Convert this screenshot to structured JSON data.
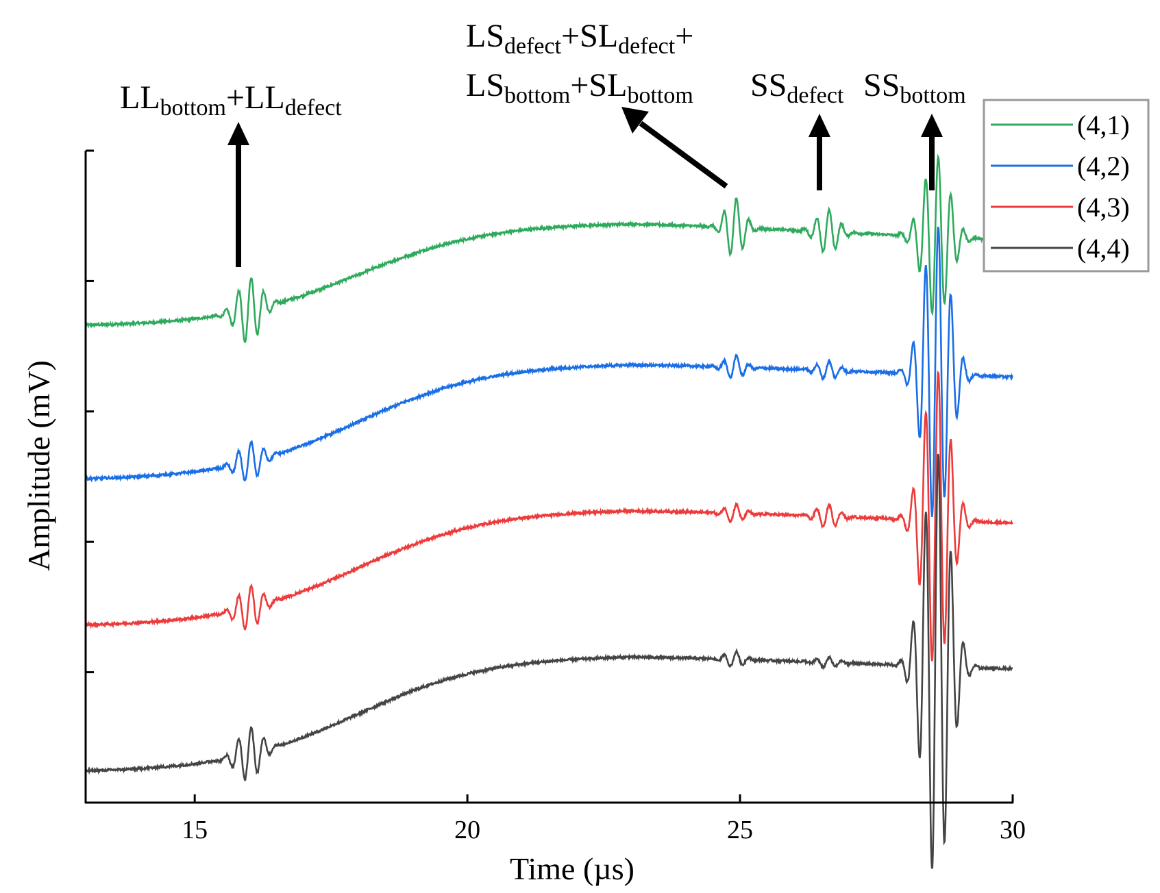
{
  "chart_data": {
    "type": "line",
    "xlabel": "Time (µs)",
    "ylabel": "Amplitude (mV)",
    "xlim": [
      13,
      30
    ],
    "ylim": [
      0,
      5
    ],
    "xticks": [
      "15",
      "20",
      "25",
      "30"
    ],
    "yticks": [
      1,
      2,
      3,
      4,
      5
    ],
    "y_tick_labels_shown": false,
    "grid": false,
    "legend_position": "top-right",
    "series": [
      {
        "name": "(4,1)",
        "color": "#2eaa5c",
        "baseline": 3.65,
        "rise": 0.8,
        "echo_amp": [
          0.25,
          0.23,
          0.17,
          0.62
        ]
      },
      {
        "name": "(4,2)",
        "color": "#1a6ee6",
        "baseline": 2.47,
        "rise": 0.9,
        "echo_amp": [
          0.15,
          0.09,
          0.07,
          1.15
        ]
      },
      {
        "name": "(4,3)",
        "color": "#ec3b3b",
        "baseline": 1.35,
        "rise": 0.9,
        "echo_amp": [
          0.17,
          0.07,
          0.09,
          1.15
        ]
      },
      {
        "name": "(4,4)",
        "color": "#444444",
        "baseline": 0.23,
        "rise": 0.9,
        "echo_amp": [
          0.2,
          0.06,
          0.04,
          1.65
        ]
      }
    ],
    "echo_centers_us": [
      16.0,
      24.9,
      26.6,
      28.6
    ],
    "annotations": [
      {
        "id": "ll",
        "parts": [
          [
            "LL",
            "main"
          ],
          [
            "bottom",
            "sub"
          ],
          [
            "+LL",
            "main"
          ],
          [
            "defect",
            "sub"
          ]
        ]
      },
      {
        "id": "ls1",
        "parts": [
          [
            "LS",
            "main"
          ],
          [
            "defect",
            "sub"
          ],
          [
            "+SL",
            "main"
          ],
          [
            "defect",
            "sub"
          ],
          [
            "+",
            "main"
          ]
        ]
      },
      {
        "id": "ls2",
        "parts": [
          [
            "LS",
            "main"
          ],
          [
            "bottom",
            "sub"
          ],
          [
            "+SL",
            "main"
          ],
          [
            "bottom",
            "sub"
          ]
        ]
      },
      {
        "id": "ssd",
        "parts": [
          [
            "SS",
            "main"
          ],
          [
            "defect",
            "sub"
          ]
        ]
      },
      {
        "id": "ssb",
        "parts": [
          [
            "SS",
            "main"
          ],
          [
            "bottom",
            "sub"
          ]
        ]
      }
    ]
  }
}
